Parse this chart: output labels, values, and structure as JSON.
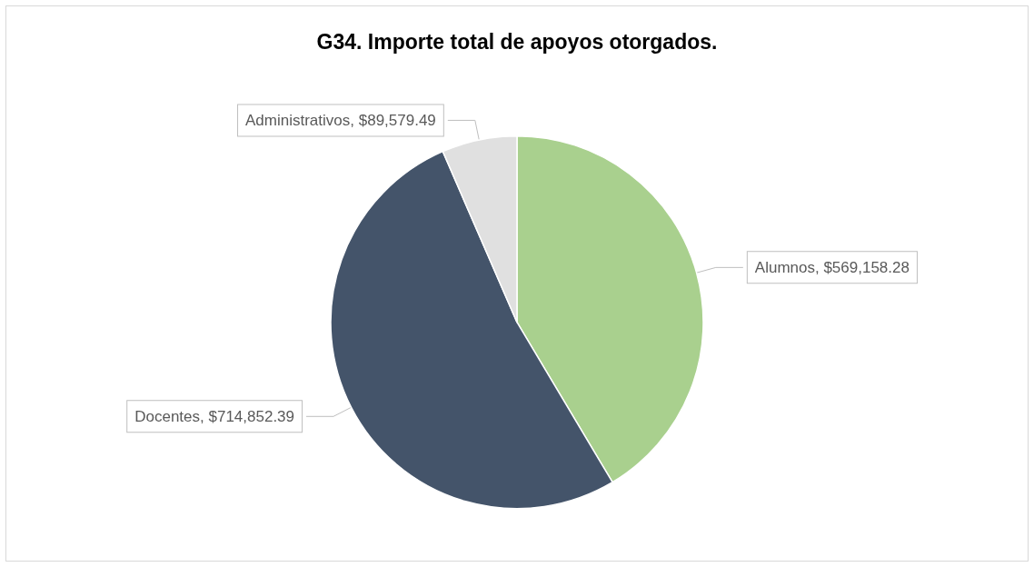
{
  "chart_data": {
    "type": "pie",
    "title": "G34. Importe total de apoyos otorgados.",
    "categories": [
      "Alumnos",
      "Docentes",
      "Administrativos"
    ],
    "values": [
      569158.28,
      714852.39,
      89579.49
    ],
    "colors": [
      "#a9d08e",
      "#44546a",
      "#e0e0e0"
    ],
    "value_labels": [
      "$569,158.28",
      "$714,852.39",
      "$89,579.49"
    ]
  }
}
